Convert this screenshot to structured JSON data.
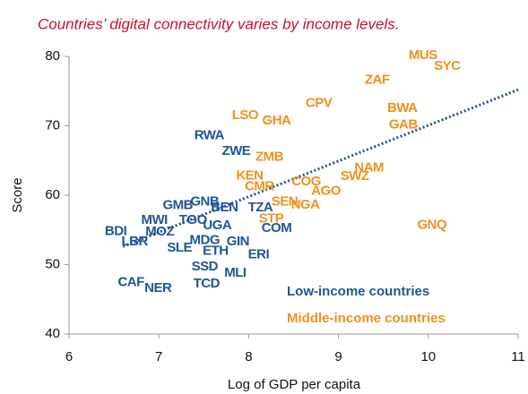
{
  "chart_data": {
    "type": "scatter",
    "subtitle": "Countries’ digital connectivity varies by income levels.",
    "x_label": "Log of GDP per capita",
    "y_label": "Score",
    "xlim": [
      6,
      11
    ],
    "xticks": [
      6,
      7,
      8,
      9,
      10,
      11
    ],
    "ylim": [
      40,
      80
    ],
    "yticks": [
      40,
      50,
      60,
      70,
      80
    ],
    "grid": false,
    "series": [
      {
        "name": "Low-income countries",
        "color": "#1f5597",
        "labels": [
          "BDI",
          "MWI",
          "TGO",
          "GMB",
          "GNB",
          "BEN",
          "TZA",
          "MOZ",
          "UGA",
          "COM",
          "LBR",
          "MDG",
          "SLE",
          "GIN",
          "ETH",
          "ERI",
          "SSD",
          "MLI",
          "TCD",
          "CAF",
          "NER",
          "RWA",
          "ZWE"
        ],
        "x": [
          6.52,
          6.95,
          7.38,
          7.21,
          7.51,
          7.73,
          8.13,
          7.01,
          7.65,
          8.31,
          6.73,
          7.51,
          7.23,
          7.88,
          7.63,
          8.11,
          7.51,
          7.85,
          7.53,
          6.69,
          6.99,
          7.56,
          7.86
        ],
        "values": [
          54.8,
          56.4,
          56.4,
          58.5,
          59.0,
          58.2,
          58.2,
          54.7,
          55.6,
          55.2,
          53.3,
          53.5,
          52.4,
          53.3,
          51.9,
          51.4,
          49.7,
          48.8,
          47.2,
          47.4,
          46.6,
          68.6,
          66.3
        ]
      },
      {
        "name": "Middle-income countries",
        "color": "#f0901e",
        "labels": [
          "MUS",
          "SYC",
          "ZAF",
          "CPV",
          "LSO",
          "GHA",
          "BWA",
          "GAB",
          "ZMB",
          "KEN",
          "NAM",
          "SWZ",
          "COG",
          "CMR",
          "AGO",
          "SEN",
          "NGA",
          "STP",
          "GNQ"
        ],
        "x": [
          9.94,
          10.21,
          9.43,
          8.78,
          7.96,
          8.31,
          9.71,
          9.72,
          8.23,
          8.01,
          9.34,
          9.18,
          8.64,
          8.12,
          8.86,
          8.4,
          8.63,
          8.25,
          10.04
        ],
        "values": [
          80.1,
          78.6,
          76.6,
          73.2,
          71.5,
          70.7,
          72.5,
          70.1,
          65.5,
          62.8,
          63.9,
          62.7,
          61.9,
          61.2,
          60.6,
          59.0,
          58.6,
          56.6,
          55.7
        ]
      }
    ],
    "trendline": {
      "color": "#1f5597",
      "x": [
        6.6,
        11
      ],
      "y": [
        52.6,
        75.2
      ]
    }
  }
}
